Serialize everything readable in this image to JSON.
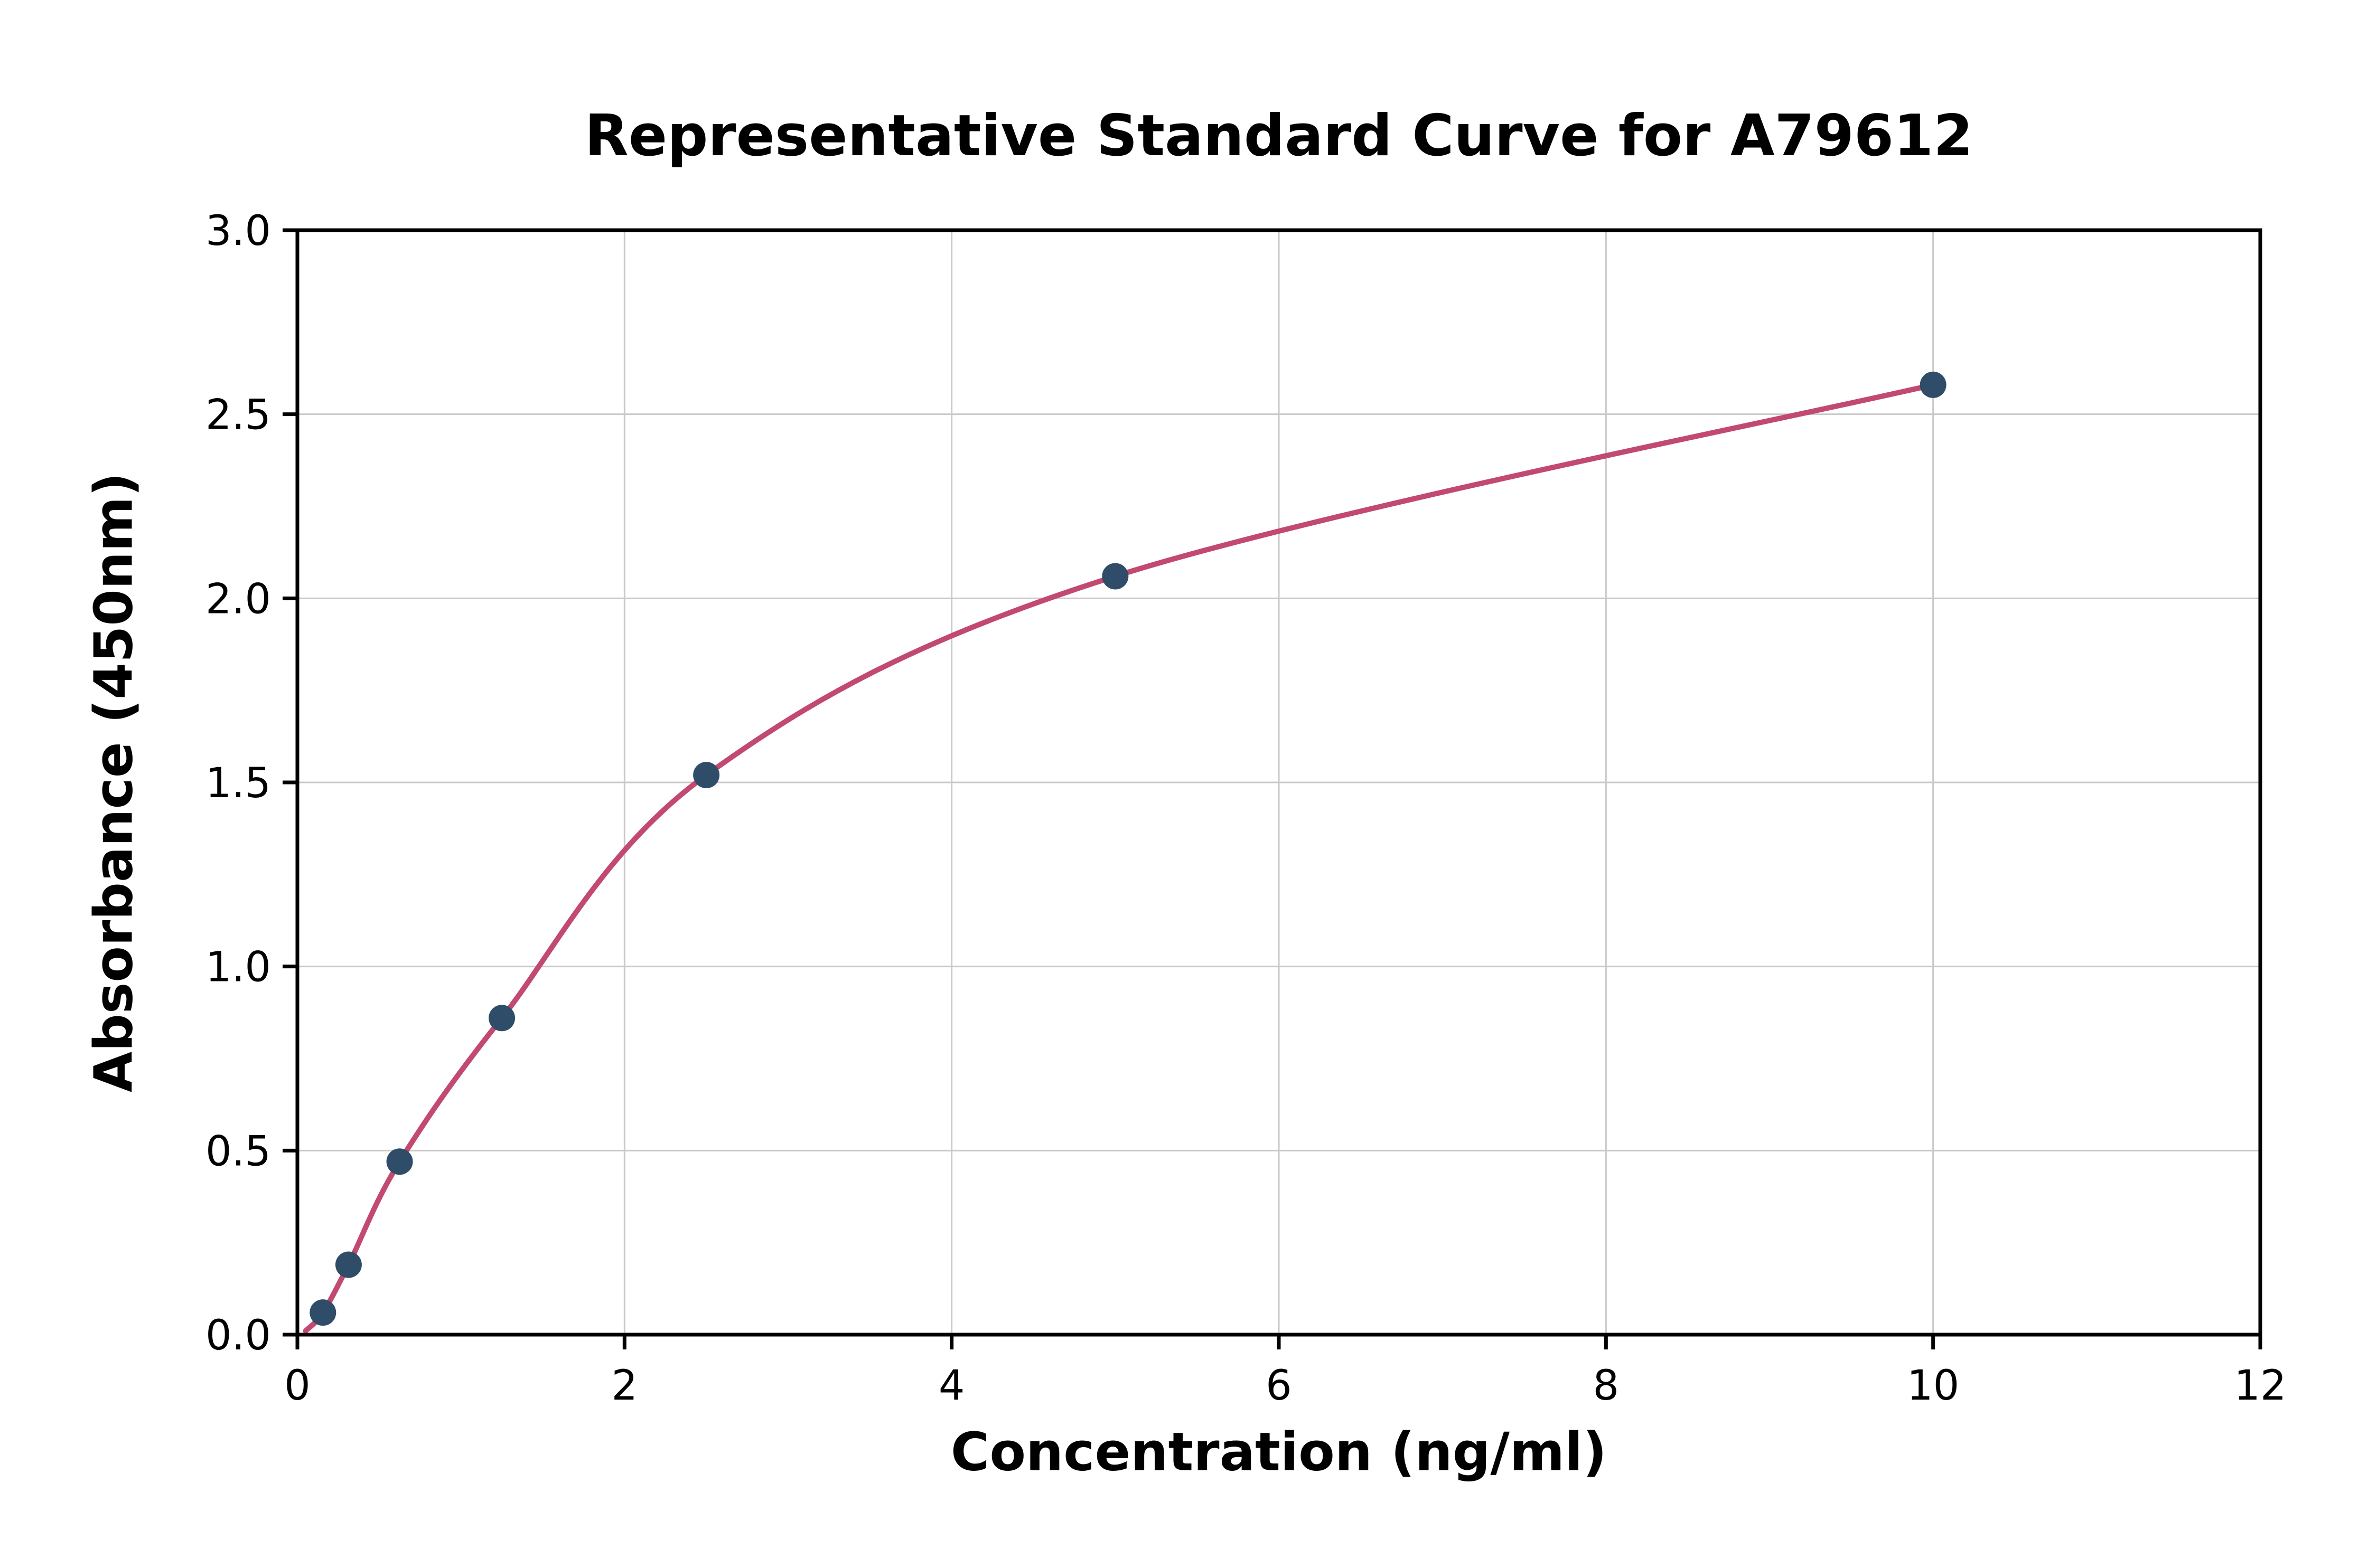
{
  "chart_data": {
    "type": "scatter",
    "title": "Representative Standard Curve for A79612",
    "xlabel": "Concentration (ng/ml)",
    "ylabel": "Absorbance (450nm)",
    "xlim": [
      0,
      12
    ],
    "ylim": [
      0.0,
      3.0
    ],
    "x_ticks": [
      0,
      2,
      4,
      6,
      8,
      10,
      12
    ],
    "x_tick_labels": [
      "0",
      "2",
      "4",
      "6",
      "8",
      "10",
      "12"
    ],
    "y_ticks": [
      0.0,
      0.5,
      1.0,
      1.5,
      2.0,
      2.5,
      3.0
    ],
    "y_tick_labels": [
      "0.0",
      "0.5",
      "1.0",
      "1.5",
      "2.0",
      "2.5",
      "3.0"
    ],
    "grid": true,
    "legend": "none",
    "points": [
      {
        "x": 0.156,
        "y": 0.06
      },
      {
        "x": 0.313,
        "y": 0.19
      },
      {
        "x": 0.625,
        "y": 0.47
      },
      {
        "x": 1.25,
        "y": 0.86
      },
      {
        "x": 2.5,
        "y": 1.52
      },
      {
        "x": 5.0,
        "y": 2.06
      },
      {
        "x": 10.0,
        "y": 2.58
      }
    ],
    "fit_curve_start": {
      "x": 0.05,
      "y": 0.01
    },
    "colors": {
      "curve": "#c2496f",
      "points": "#2f4d68",
      "grid": "#c9c9c9",
      "axis": "#000000",
      "text": "#000000"
    }
  }
}
